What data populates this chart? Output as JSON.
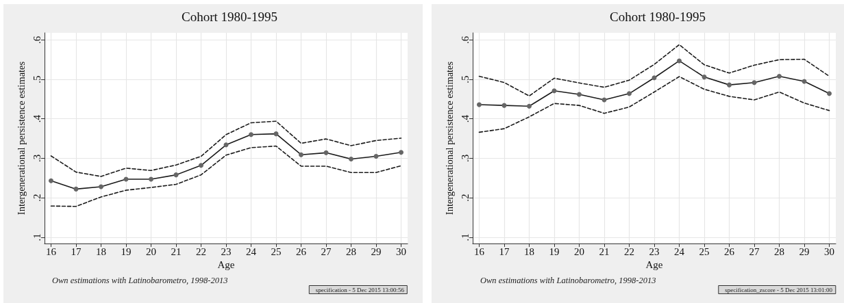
{
  "chart_data": [
    {
      "type": "line",
      "title": "Cohort 1980-1995",
      "xlabel": "Age",
      "ylabel": "Intergenerational persistence estimates",
      "annotations": [
        "Own estimations with Latinobarometro, 1998-2013",
        "specification - 5 Dec 2015 13:00:56"
      ],
      "x": [
        16,
        17,
        18,
        19,
        20,
        21,
        22,
        23,
        24,
        25,
        26,
        27,
        28,
        29,
        30
      ],
      "xlim": [
        15.74,
        30.26
      ],
      "xticks": [
        16,
        17,
        18,
        19,
        20,
        21,
        22,
        23,
        24,
        25,
        26,
        27,
        28,
        29,
        30
      ],
      "ylim": [
        0.084,
        0.618
      ],
      "yticks": [
        {
          "value": 0.1,
          "label": ".1"
        },
        {
          "value": 0.2,
          "label": ".2"
        },
        {
          "value": 0.3,
          "label": ".3"
        },
        {
          "value": 0.4,
          "label": ".4"
        },
        {
          "value": 0.5,
          "label": ".5"
        },
        {
          "value": 0.6,
          "label": ".6"
        }
      ],
      "grid": true,
      "series": [
        {
          "color": "#1a1a1a",
          "colors": [
            "#666666",
            "#666666",
            "#666666",
            "#666666",
            "#666666",
            "#666666",
            "#666666",
            "#666666",
            "#666666",
            "#666666",
            "#666666",
            "#666666",
            "#666666",
            "#666666",
            "#666666"
          ],
          "marker": "circle",
          "line_style": "solid",
          "values": [
            0.243,
            0.222,
            0.228,
            0.247,
            0.247,
            0.258,
            0.282,
            0.334,
            0.36,
            0.362,
            0.309,
            0.314,
            0.298,
            0.305,
            0.315
          ]
        },
        {
          "color": "#1a1a1a",
          "marker": "none",
          "line_style": "dashed",
          "values": [
            0.306,
            0.265,
            0.254,
            0.275,
            0.269,
            0.283,
            0.305,
            0.36,
            0.39,
            0.394,
            0.338,
            0.349,
            0.332,
            0.345,
            0.351
          ]
        },
        {
          "color": "#1a1a1a",
          "marker": "none",
          "line_style": "dashed",
          "values": [
            0.179,
            0.178,
            0.202,
            0.219,
            0.226,
            0.234,
            0.258,
            0.308,
            0.327,
            0.331,
            0.28,
            0.28,
            0.264,
            0.264,
            0.281
          ]
        }
      ]
    },
    {
      "type": "line",
      "title": "Cohort 1980-1995",
      "xlabel": "Age",
      "ylabel": "Intergenerational persistence estimates",
      "annotations": [
        "Own estimations with Latinobarometro, 1998-2013",
        "specification_zscore - 5 Dec 2015 13:01:00"
      ],
      "x": [
        16,
        17,
        18,
        19,
        20,
        21,
        22,
        23,
        24,
        25,
        26,
        27,
        28,
        29,
        30
      ],
      "xlim": [
        15.74,
        30.26
      ],
      "xticks": [
        16,
        17,
        18,
        19,
        20,
        21,
        22,
        23,
        24,
        25,
        26,
        27,
        28,
        29,
        30
      ],
      "ylim": [
        0.084,
        0.618
      ],
      "yticks": [
        {
          "value": 0.1,
          "label": ".1"
        },
        {
          "value": 0.2,
          "label": ".2"
        },
        {
          "value": 0.3,
          "label": ".3"
        },
        {
          "value": 0.4,
          "label": ".4"
        },
        {
          "value": 0.5,
          "label": ".5"
        },
        {
          "value": 0.6,
          "label": ".6"
        }
      ],
      "grid": true,
      "series": [
        {
          "color": "#1a1a1a",
          "colors": [
            "#666666",
            "#666666",
            "#666666",
            "#666666",
            "#666666",
            "#666666",
            "#666666",
            "#666666",
            "#666666",
            "#666666",
            "#666666",
            "#666666",
            "#666666",
            "#666666",
            "#666666"
          ],
          "marker": "circle",
          "line_style": "solid",
          "values": [
            0.436,
            0.434,
            0.432,
            0.471,
            0.462,
            0.448,
            0.464,
            0.504,
            0.547,
            0.506,
            0.486,
            0.492,
            0.508,
            0.495,
            0.464
          ]
        },
        {
          "color": "#1a1a1a",
          "marker": "none",
          "line_style": "dashed",
          "values": [
            0.508,
            0.492,
            0.458,
            0.503,
            0.491,
            0.48,
            0.498,
            0.538,
            0.588,
            0.537,
            0.516,
            0.536,
            0.55,
            0.551,
            0.508
          ]
        },
        {
          "color": "#1a1a1a",
          "marker": "none",
          "line_style": "dashed",
          "values": [
            0.366,
            0.375,
            0.405,
            0.439,
            0.434,
            0.414,
            0.43,
            0.468,
            0.507,
            0.475,
            0.457,
            0.448,
            0.468,
            0.44,
            0.421
          ]
        }
      ]
    }
  ]
}
